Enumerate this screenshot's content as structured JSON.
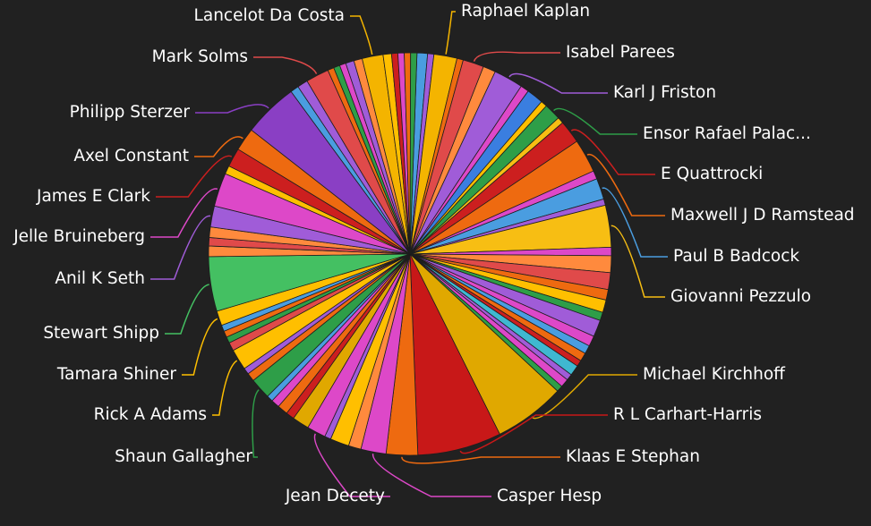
{
  "chart_data": {
    "type": "pie",
    "start_angle_deg": 2,
    "labeled_slices": [
      {
        "label": "Raphael Kaplan",
        "value": 1.1,
        "color": "#f4b400"
      },
      {
        "label": "Isabel Parees",
        "value": 1.0,
        "color": "#e04a4a"
      },
      {
        "label": "Karl J Friston",
        "value": 1.4,
        "color": "#a05cd8"
      },
      {
        "label": "Ensor Rafael Palac...",
        "value": 0.8,
        "color": "#2e9e48"
      },
      {
        "label": "E Quattrocki",
        "value": 1.1,
        "color": "#cc1f1f"
      },
      {
        "label": "Maxwell J D Ramstead",
        "value": 1.6,
        "color": "#ee6a10"
      },
      {
        "label": "Paul B Badcock",
        "value": 1.0,
        "color": "#4a9de0"
      },
      {
        "label": "Giovanni Pezzulo",
        "value": 2.0,
        "color": "#f7be13"
      },
      {
        "label": "Michael Kirchhoff",
        "value": 3.4,
        "color": "#e0a800"
      },
      {
        "label": "R L Carhart-Harris",
        "value": 4.0,
        "color": "#c81818"
      },
      {
        "label": "Klaas E Stephan",
        "value": 1.5,
        "color": "#ee6a10"
      },
      {
        "label": "Casper Hesp",
        "value": 1.2,
        "color": "#dd48c8"
      },
      {
        "label": "Jean Decety",
        "value": 0.9,
        "color": "#dd48c8"
      },
      {
        "label": "Shaun Gallagher",
        "value": 1.0,
        "color": "#2e9e48"
      },
      {
        "label": "Rick A Adams",
        "value": 1.0,
        "color": "#ffbf00"
      },
      {
        "label": "Tamara Shiner",
        "value": 0.7,
        "color": "#ffbf00"
      },
      {
        "label": "Stewart Shipp",
        "value": 2.6,
        "color": "#44c062"
      },
      {
        "label": "Anil K Seth",
        "value": 1.0,
        "color": "#a05cd8"
      },
      {
        "label": "Jelle Bruineberg",
        "value": 1.6,
        "color": "#dd48c8"
      },
      {
        "label": "James E Clark",
        "value": 0.9,
        "color": "#cc1f1f"
      },
      {
        "label": "Axel Constant",
        "value": 1.1,
        "color": "#ee6a10"
      },
      {
        "label": "Philipp Sterzer",
        "value": 2.6,
        "color": "#8a3fc4"
      },
      {
        "label": "Mark Solms",
        "value": 1.1,
        "color": "#e04a4a"
      },
      {
        "label": "Lancelot Da Costa",
        "value": 1.0,
        "color": "#f4b400"
      }
    ],
    "label_line_colors": [
      "#f4b400",
      "#e04a4a",
      "#a05cd8",
      "#2e9e48",
      "#cc1f1f",
      "#ee6a10",
      "#4a9de0",
      "#f7be13",
      "#e0a800",
      "#c81818",
      "#ee6a10",
      "#dd48c8",
      "#dd48c8",
      "#2e9e48",
      "#ffbf00",
      "#ffbf00",
      "#44c062",
      "#a05cd8",
      "#dd48c8",
      "#cc1f1f",
      "#ee6a10",
      "#8a3fc4",
      "#e04a4a",
      "#f4b400"
    ],
    "note_small_slices": "many unlabeled small slices between labeled ones",
    "slices_in_order": [
      {
        "value": 0.5,
        "color": "#4a9de0"
      },
      {
        "value": 0.3,
        "color": "#a05cd8"
      },
      {
        "value": 1.1,
        "color": "#f4b400",
        "label_index": 0
      },
      {
        "value": 0.3,
        "color": "#ee6a10"
      },
      {
        "value": 1.0,
        "color": "#e04a4a",
        "label_index": 1
      },
      {
        "value": 0.6,
        "color": "#ff8a3d"
      },
      {
        "value": 1.4,
        "color": "#a05cd8",
        "label_index": 2
      },
      {
        "value": 0.4,
        "color": "#dd48c8"
      },
      {
        "value": 0.8,
        "color": "#3a7ee0"
      },
      {
        "value": 0.3,
        "color": "#ffbf00"
      },
      {
        "value": 0.8,
        "color": "#2e9e48",
        "label_index": 3
      },
      {
        "value": 0.3,
        "color": "#f7be13"
      },
      {
        "value": 1.1,
        "color": "#cc1f1f",
        "label_index": 4
      },
      {
        "value": 1.6,
        "color": "#ee6a10",
        "label_index": 5
      },
      {
        "value": 0.4,
        "color": "#dd48c8"
      },
      {
        "value": 1.0,
        "color": "#4a9de0",
        "label_index": 6
      },
      {
        "value": 0.3,
        "color": "#a05cd8"
      },
      {
        "value": 2.0,
        "color": "#f7be13",
        "label_index": 7
      },
      {
        "value": 0.4,
        "color": "#dd48c8"
      },
      {
        "value": 0.8,
        "color": "#ff8a3d"
      },
      {
        "value": 0.8,
        "color": "#e04a4a"
      },
      {
        "value": 0.5,
        "color": "#ee6a10"
      },
      {
        "value": 0.6,
        "color": "#ffbf00"
      },
      {
        "value": 0.4,
        "color": "#2e9e48"
      },
      {
        "value": 0.8,
        "color": "#a05cd8"
      },
      {
        "value": 0.5,
        "color": "#dd48c8"
      },
      {
        "value": 0.4,
        "color": "#4a9de0"
      },
      {
        "value": 0.4,
        "color": "#ee6a10"
      },
      {
        "value": 0.3,
        "color": "#cc1f1f"
      },
      {
        "value": 0.5,
        "color": "#3fb8d0"
      },
      {
        "value": 0.3,
        "color": "#a05cd8"
      },
      {
        "value": 0.4,
        "color": "#dd48c8"
      },
      {
        "value": 0.3,
        "color": "#2e9e48"
      },
      {
        "value": 3.4,
        "color": "#e0a800",
        "label_index": 8
      },
      {
        "value": 4.0,
        "color": "#c81818",
        "label_index": 9
      },
      {
        "value": 1.5,
        "color": "#ee6a10",
        "label_index": 10
      },
      {
        "value": 1.2,
        "color": "#dd48c8",
        "label_index": 11
      },
      {
        "value": 0.6,
        "color": "#ff8a3d"
      },
      {
        "value": 0.9,
        "color": "#ffbf00"
      },
      {
        "value": 0.3,
        "color": "#a05cd8"
      },
      {
        "value": 0.9,
        "color": "#dd48c8",
        "label_index": 12
      },
      {
        "value": 0.8,
        "color": "#e0a800"
      },
      {
        "value": 0.4,
        "color": "#cc1f1f"
      },
      {
        "value": 0.5,
        "color": "#ee6a10"
      },
      {
        "value": 0.4,
        "color": "#dd48c8"
      },
      {
        "value": 0.3,
        "color": "#4a9de0"
      },
      {
        "value": 1.0,
        "color": "#2e9e48",
        "label_index": 13
      },
      {
        "value": 0.4,
        "color": "#ee6a10"
      },
      {
        "value": 0.3,
        "color": "#a05cd8"
      },
      {
        "value": 1.0,
        "color": "#ffbf00",
        "label_index": 14
      },
      {
        "value": 0.4,
        "color": "#e04a4a"
      },
      {
        "value": 0.3,
        "color": "#2e9e48"
      },
      {
        "value": 0.3,
        "color": "#ee6a10"
      },
      {
        "value": 0.3,
        "color": "#4a9de0"
      },
      {
        "value": 0.7,
        "color": "#ffbf00",
        "label_index": 15
      },
      {
        "value": 2.6,
        "color": "#44c062",
        "label_index": 16
      },
      {
        "value": 0.5,
        "color": "#ff8a3d"
      },
      {
        "value": 0.4,
        "color": "#e04a4a"
      },
      {
        "value": 0.5,
        "color": "#ff8a3d"
      },
      {
        "value": 1.0,
        "color": "#a05cd8",
        "label_index": 17
      },
      {
        "value": 1.6,
        "color": "#dd48c8",
        "label_index": 18
      },
      {
        "value": 0.4,
        "color": "#ffbf00"
      },
      {
        "value": 0.9,
        "color": "#cc1f1f",
        "label_index": 19
      },
      {
        "value": 1.1,
        "color": "#ee6a10",
        "label_index": 20
      },
      {
        "value": 2.6,
        "color": "#8a3fc4",
        "label_index": 21
      },
      {
        "value": 0.4,
        "color": "#4a9de0"
      },
      {
        "value": 0.5,
        "color": "#a05cd8"
      },
      {
        "value": 1.1,
        "color": "#e04a4a",
        "label_index": 22
      },
      {
        "value": 0.3,
        "color": "#ee6a10"
      },
      {
        "value": 0.3,
        "color": "#2e9e48"
      },
      {
        "value": 0.3,
        "color": "#dd48c8"
      },
      {
        "value": 0.4,
        "color": "#a05cd8"
      },
      {
        "value": 0.4,
        "color": "#ff8a3d"
      },
      {
        "value": 1.0,
        "color": "#f4b400",
        "label_index": 23
      },
      {
        "value": 0.4,
        "color": "#ffbf00"
      },
      {
        "value": 0.3,
        "color": "#cc1f1f"
      },
      {
        "value": 0.3,
        "color": "#dd48c8"
      },
      {
        "value": 0.3,
        "color": "#ee6a10"
      },
      {
        "value": 0.3,
        "color": "#2e9e48"
      }
    ]
  }
}
